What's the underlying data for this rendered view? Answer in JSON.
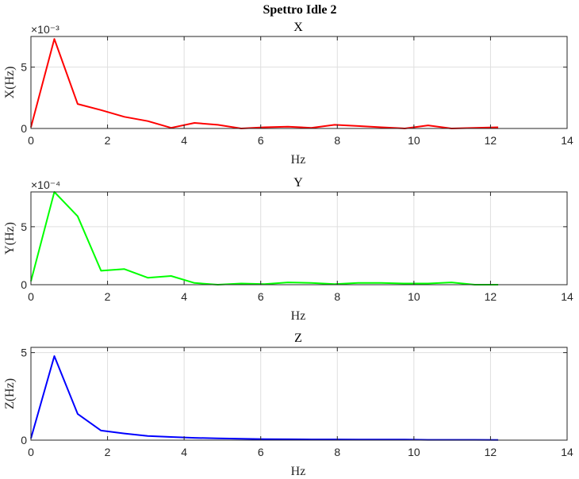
{
  "figure": {
    "suptitle": "Spettro Idle 2"
  },
  "chart_data": [
    {
      "type": "line",
      "title": "X",
      "xlabel": "Hz",
      "ylabel": "X(Hz)",
      "xlim": [
        0,
        14
      ],
      "ylim": [
        0,
        7.5
      ],
      "xticks": [
        0,
        2,
        4,
        6,
        8,
        10,
        12,
        14
      ],
      "xtick_labels": [
        "0",
        "2",
        "4",
        "6",
        "8",
        "10",
        "12",
        "14"
      ],
      "yticks": [
        0,
        5
      ],
      "ytick_labels": [
        "0",
        "5"
      ],
      "exponent_label": "×10⁻³",
      "grid": true,
      "color": "#ff0000",
      "series": [
        {
          "x": [
            0,
            0.61,
            1.22,
            1.83,
            2.44,
            3.05,
            3.66,
            4.27,
            4.88,
            5.49,
            6.1,
            6.71,
            7.32,
            7.93,
            8.54,
            9.15,
            9.76,
            10.37,
            10.98,
            11.59,
            12.2
          ],
          "values": [
            0.1,
            7.3,
            2.0,
            1.5,
            0.95,
            0.6,
            0.05,
            0.45,
            0.3,
            0.0,
            0.1,
            0.15,
            0.05,
            0.3,
            0.2,
            0.1,
            0.0,
            0.25,
            0.0,
            0.05,
            0.1
          ]
        }
      ]
    },
    {
      "type": "line",
      "title": "Y",
      "xlabel": "Hz",
      "ylabel": "Y(Hz)",
      "xlim": [
        0,
        14
      ],
      "ylim": [
        0,
        8
      ],
      "xticks": [
        0,
        2,
        4,
        6,
        8,
        10,
        12,
        14
      ],
      "xtick_labels": [
        "0",
        "2",
        "4",
        "6",
        "8",
        "10",
        "12",
        "14"
      ],
      "yticks": [
        0,
        5
      ],
      "ytick_labels": [
        "0",
        "5"
      ],
      "exponent_label": "×10⁻⁴",
      "grid": true,
      "color": "#00ff00",
      "series": [
        {
          "x": [
            0,
            0.61,
            1.22,
            1.83,
            2.44,
            3.05,
            3.66,
            4.27,
            4.88,
            5.49,
            6.1,
            6.71,
            7.32,
            7.93,
            8.54,
            9.15,
            9.76,
            10.37,
            10.98,
            11.59,
            12.2
          ],
          "values": [
            0.3,
            8.0,
            5.9,
            1.2,
            1.35,
            0.6,
            0.75,
            0.15,
            0.0,
            0.1,
            0.05,
            0.2,
            0.15,
            0.05,
            0.15,
            0.15,
            0.1,
            0.1,
            0.2,
            0.0,
            0.0
          ]
        }
      ]
    },
    {
      "type": "line",
      "title": "Z",
      "xlabel": "Hz",
      "ylabel": "Z(Hz)",
      "xlim": [
        0,
        14
      ],
      "ylim": [
        0,
        5.3
      ],
      "xticks": [
        0,
        2,
        4,
        6,
        8,
        10,
        12,
        14
      ],
      "xtick_labels": [
        "0",
        "2",
        "4",
        "6",
        "8",
        "10",
        "12",
        "14"
      ],
      "yticks": [
        0,
        5
      ],
      "ytick_labels": [
        "0",
        "5"
      ],
      "exponent_label": "",
      "grid": true,
      "color": "#0000ff",
      "series": [
        {
          "x": [
            0,
            0.61,
            1.22,
            1.83,
            2.44,
            3.05,
            3.66,
            4.27,
            4.88,
            5.49,
            6.1,
            6.71,
            7.32,
            7.93,
            8.54,
            9.15,
            9.76,
            10.37,
            10.98,
            11.59,
            12.2
          ],
          "values": [
            0.1,
            4.8,
            1.5,
            0.55,
            0.38,
            0.24,
            0.18,
            0.13,
            0.1,
            0.08,
            0.06,
            0.05,
            0.04,
            0.04,
            0.03,
            0.03,
            0.03,
            0.02,
            0.02,
            0.02,
            0.01
          ]
        }
      ]
    }
  ]
}
